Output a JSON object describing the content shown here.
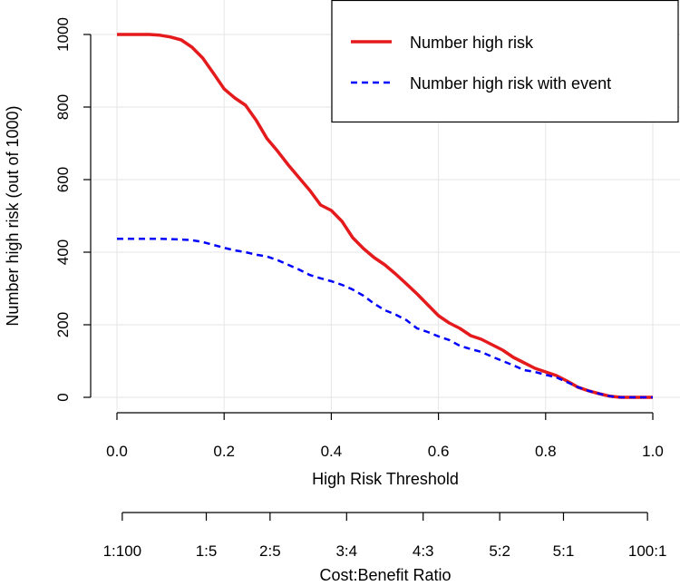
{
  "chart_data": {
    "type": "line",
    "title": "",
    "xlabel": "High Risk Threshold",
    "ylabel": "Number high risk (out of 1000)",
    "xlim": [
      0.0,
      1.0
    ],
    "ylim": [
      0,
      1000
    ],
    "x_ticks": [
      "0.0",
      "0.2",
      "0.4",
      "0.6",
      "0.8",
      "1.0"
    ],
    "y_ticks": [
      "0",
      "200",
      "400",
      "600",
      "800",
      "1000"
    ],
    "grid": true,
    "legend_position": "top-right",
    "series": [
      {
        "name": "Number high risk",
        "color": "#e41a1c",
        "dash": "solid",
        "x": [
          0.0,
          0.02,
          0.04,
          0.06,
          0.08,
          0.1,
          0.12,
          0.14,
          0.16,
          0.18,
          0.2,
          0.22,
          0.24,
          0.26,
          0.28,
          0.3,
          0.32,
          0.34,
          0.36,
          0.38,
          0.4,
          0.42,
          0.44,
          0.46,
          0.48,
          0.5,
          0.52,
          0.54,
          0.56,
          0.58,
          0.6,
          0.62,
          0.64,
          0.66,
          0.68,
          0.7,
          0.72,
          0.74,
          0.76,
          0.78,
          0.8,
          0.82,
          0.84,
          0.86,
          0.88,
          0.9,
          0.92,
          0.94,
          0.96,
          0.98,
          1.0
        ],
        "values": [
          1000,
          1000,
          1000,
          1000,
          998,
          993,
          985,
          965,
          935,
          893,
          850,
          825,
          805,
          763,
          713,
          678,
          640,
          605,
          570,
          530,
          515,
          485,
          440,
          410,
          385,
          365,
          340,
          313,
          285,
          255,
          225,
          205,
          190,
          170,
          160,
          145,
          130,
          110,
          95,
          80,
          70,
          60,
          45,
          28,
          18,
          10,
          3,
          0,
          0,
          0,
          0
        ]
      },
      {
        "name": "Number high risk with event",
        "color": "#0000ff",
        "dash": "dashed",
        "x": [
          0.0,
          0.02,
          0.04,
          0.06,
          0.08,
          0.1,
          0.12,
          0.14,
          0.16,
          0.18,
          0.2,
          0.22,
          0.24,
          0.26,
          0.28,
          0.3,
          0.32,
          0.34,
          0.36,
          0.38,
          0.4,
          0.42,
          0.44,
          0.46,
          0.48,
          0.5,
          0.52,
          0.54,
          0.56,
          0.58,
          0.6,
          0.62,
          0.64,
          0.66,
          0.68,
          0.7,
          0.72,
          0.74,
          0.76,
          0.78,
          0.8,
          0.82,
          0.84,
          0.86,
          0.88,
          0.9,
          0.92,
          0.94,
          0.96,
          0.98,
          1.0
        ],
        "values": [
          437,
          437,
          437,
          437,
          437,
          436,
          435,
          433,
          428,
          420,
          412,
          405,
          400,
          393,
          388,
          378,
          365,
          352,
          337,
          328,
          320,
          310,
          297,
          280,
          258,
          240,
          228,
          213,
          190,
          180,
          168,
          158,
          142,
          133,
          125,
          112,
          100,
          88,
          75,
          70,
          62,
          55,
          42,
          28,
          18,
          10,
          3,
          0,
          0,
          0,
          0
        ]
      }
    ],
    "secondary_axis": {
      "label": "Cost:Benefit Ratio",
      "ticks": [
        {
          "x": 0.0099,
          "label": "1:100"
        },
        {
          "x": 0.1667,
          "label": "1:5"
        },
        {
          "x": 0.2857,
          "label": "2:5"
        },
        {
          "x": 0.4286,
          "label": "3:4"
        },
        {
          "x": 0.5714,
          "label": "4:3"
        },
        {
          "x": 0.7143,
          "label": "5:2"
        },
        {
          "x": 0.8333,
          "label": "5:1"
        },
        {
          "x": 0.9901,
          "label": "100:1"
        }
      ]
    }
  }
}
